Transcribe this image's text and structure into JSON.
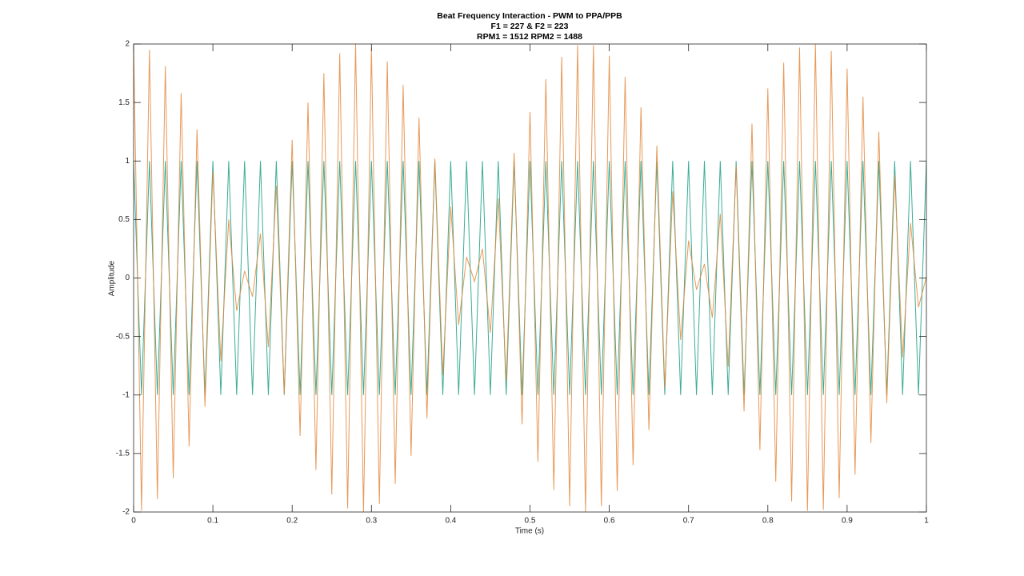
{
  "chart_data": {
    "type": "line",
    "title": [
      "Beat Frequency Interaction - PWM to PPA/PPB",
      "F1 = 227 & F2 = 223",
      "RPM1 = 1512   RPM2 = 1488"
    ],
    "xlabel": "Time (s)",
    "ylabel": "Amplitude",
    "x": [
      0,
      0.01,
      0.02,
      0.03,
      0.04,
      0.05,
      0.06,
      0.07,
      0.08,
      0.09,
      0.1,
      0.11,
      0.12,
      0.13,
      0.14,
      0.15,
      0.16,
      0.17,
      0.18,
      0.19,
      0.2,
      0.21,
      0.22,
      0.23,
      0.24,
      0.25,
      0.26,
      0.27,
      0.28,
      0.29,
      0.3,
      0.31,
      0.32,
      0.33,
      0.34,
      0.35,
      0.36,
      0.37,
      0.38,
      0.39,
      0.4,
      0.41,
      0.42,
      0.43,
      0.44,
      0.45,
      0.46,
      0.47,
      0.48,
      0.49,
      0.5,
      0.51,
      0.52,
      0.53,
      0.54,
      0.55,
      0.56,
      0.57,
      0.58,
      0.59,
      0.6,
      0.61,
      0.62,
      0.63,
      0.64,
      0.65,
      0.66,
      0.67,
      0.68,
      0.69,
      0.7,
      0.71,
      0.72,
      0.73,
      0.74,
      0.75,
      0.76,
      0.77,
      0.78,
      0.79,
      0.8,
      0.81,
      0.82,
      0.83,
      0.84,
      0.85,
      0.86,
      0.87,
      0.88,
      0.89,
      0.9,
      0.91,
      0.92,
      0.93,
      0.94,
      0.95,
      0.96,
      0.97,
      0.98,
      0.99,
      1
    ],
    "series": [
      {
        "color": "#1a9e82",
        "values": [
          1,
          -1,
          1,
          -1,
          1,
          -1,
          1,
          -1,
          1,
          -1,
          1,
          -1,
          1,
          -1,
          1,
          -1,
          1,
          -1,
          1,
          -1,
          1,
          -1,
          1,
          -1,
          1,
          -1,
          1,
          -1,
          1,
          -1,
          1,
          -1,
          1,
          -1,
          1,
          -1,
          1,
          -1,
          1,
          -1,
          1,
          -1,
          1,
          -1,
          1,
          -1,
          1,
          -1,
          1,
          -1,
          1,
          -1,
          1,
          -1,
          1,
          -1,
          1,
          -1,
          1,
          -1,
          1,
          -1,
          1,
          -1,
          1,
          -1,
          1,
          -1,
          1,
          -1,
          1,
          -1,
          1,
          -1,
          1,
          -1,
          1,
          -1,
          1,
          -1,
          1,
          -1,
          1,
          -1,
          1,
          -1,
          1,
          -1,
          1,
          -1,
          1,
          -1,
          1,
          -1,
          1,
          -1,
          1,
          -1,
          1,
          -1,
          1
        ]
      },
      {
        "color": "#e3873c",
        "values": [
          2,
          -1.99,
          1.95,
          -1.89,
          1.81,
          -1.71,
          1.58,
          -1.44,
          1.27,
          -1.1,
          0.91,
          -0.71,
          0.5,
          -0.28,
          0.06,
          -0.16,
          0.38,
          -0.59,
          0.79,
          -0.99,
          1.18,
          -1.35,
          1.5,
          -1.64,
          1.75,
          -1.85,
          1.92,
          -1.97,
          2,
          -2,
          1.97,
          -1.93,
          1.85,
          -1.76,
          1.65,
          -1.52,
          1.37,
          -1.2,
          1.02,
          -0.83,
          0.61,
          -0.4,
          0.18,
          -0.03,
          0.25,
          -0.47,
          0.68,
          -0.88,
          1.07,
          -1.25,
          1.42,
          -1.57,
          1.7,
          -1.81,
          1.89,
          -1.95,
          1.99,
          -2,
          1.99,
          -1.95,
          1.9,
          -1.82,
          1.72,
          -1.6,
          1.46,
          -1.3,
          1.13,
          -0.94,
          0.74,
          -0.53,
          0.32,
          -0.1,
          0.12,
          -0.34,
          0.55,
          -0.76,
          0.96,
          -1.14,
          1.32,
          -1.47,
          1.62,
          -1.74,
          1.84,
          -1.91,
          1.97,
          -1.99,
          2,
          -1.98,
          1.94,
          -1.88,
          1.79,
          -1.68,
          1.55,
          -1.41,
          1.25,
          -1.07,
          0.88,
          -0.68,
          0.47,
          -0.25,
          0.01
        ]
      }
    ],
    "xlim": [
      0,
      1
    ],
    "xticks": [
      0,
      0.1,
      0.2,
      0.3,
      0.4,
      0.5,
      0.6,
      0.7,
      0.8,
      0.9,
      1
    ],
    "ylim": [
      -2,
      2
    ],
    "yticks": [
      -2,
      -1.5,
      -1,
      -0.5,
      0,
      0.5,
      1,
      1.5,
      2
    ],
    "grid": false
  }
}
